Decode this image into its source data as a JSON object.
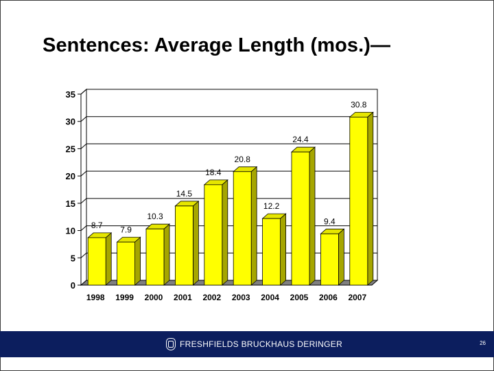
{
  "slide": {
    "title": "Sentences:  Average Length (mos.)—",
    "page_number": "26"
  },
  "footer": {
    "brand_name": "FRESHFIELDS BRUCKHAUS DERINGER",
    "logo_icon": "crest-icon",
    "background": "#0c1e5e"
  },
  "chart_data": {
    "type": "bar",
    "title": "",
    "xlabel": "",
    "ylabel": "",
    "categories": [
      "1998",
      "1999",
      "2000",
      "2001",
      "2002",
      "2003",
      "2004",
      "2005",
      "2006",
      "2007"
    ],
    "values": [
      8.7,
      7.9,
      10.3,
      14.5,
      18.4,
      20.8,
      12.2,
      24.4,
      9.4,
      30.8
    ],
    "data_labels": [
      "8.7",
      "7.9",
      "10.3",
      "14.5",
      "18.4",
      "20.8",
      "12.2",
      "24.4",
      "9.4",
      "30.8"
    ],
    "y_ticks": [
      0,
      5,
      10,
      15,
      20,
      25,
      30,
      35
    ],
    "ylim": [
      0,
      35
    ],
    "grid": true,
    "style": "3d-bar",
    "colors": {
      "bar_front": "#ffff00",
      "bar_top": "#e6e600",
      "bar_side": "#a6a600",
      "floor": "#808080"
    }
  }
}
